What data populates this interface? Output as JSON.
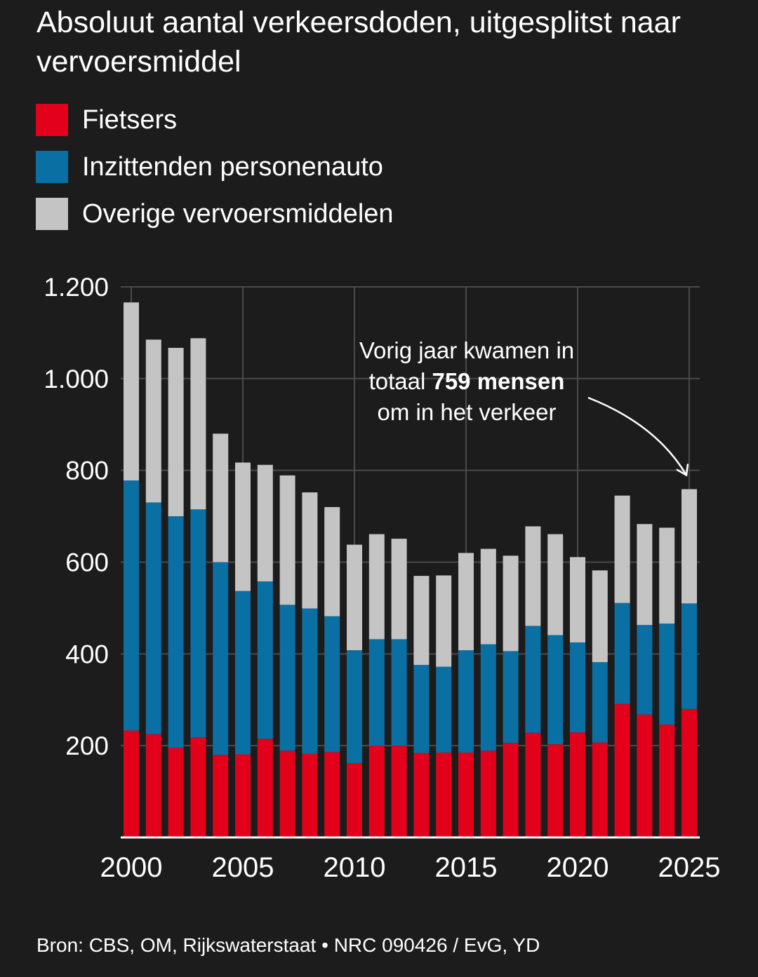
{
  "header": {
    "title": "Absoluut aantal verkeersdoden, uitgesplitst naar vervoersmiddel"
  },
  "colors": {
    "background": "#1c1c1c",
    "fietsers": "#e3001b",
    "auto": "#0a6fa3",
    "overige": "#c4c4c4",
    "grid": "#4a4a4a",
    "axis": "#ffffff"
  },
  "legend": {
    "items": [
      {
        "label": "Fietsers",
        "color": "#e3001b"
      },
      {
        "label": "Inzittenden personenauto",
        "color": "#0a6fa3"
      },
      {
        "label": "Overige vervoersmiddelen",
        "color": "#c4c4c4"
      }
    ]
  },
  "annotation": {
    "line1": "Vorig jaar kwamen in",
    "line2_pre": "totaal ",
    "line2_bold": "759 mensen",
    "line3": "om  in het verkeer"
  },
  "source": {
    "text": "Bron: CBS, OM, Rijkswaterstaat  •  NRC 090426 / EvG, YD"
  },
  "chart_data": {
    "type": "bar",
    "stacked": true,
    "x": [
      2000,
      2001,
      2002,
      2003,
      2004,
      2005,
      2006,
      2007,
      2008,
      2009,
      2010,
      2011,
      2012,
      2013,
      2014,
      2015,
      2016,
      2017,
      2018,
      2019,
      2020,
      2021,
      2022,
      2023,
      2024,
      2025
    ],
    "series": [
      {
        "name": "Fietsers",
        "values": [
          233,
          225,
          195,
          218,
          180,
          181,
          215,
          189,
          182,
          186,
          162,
          200,
          200,
          184,
          185,
          185,
          189,
          206,
          228,
          203,
          229,
          207,
          291,
          268,
          246,
          280
        ]
      },
      {
        "name": "Inzittenden personenauto",
        "values": [
          545,
          505,
          505,
          497,
          420,
          356,
          343,
          318,
          317,
          296,
          246,
          232,
          232,
          192,
          187,
          223,
          232,
          200,
          233,
          238,
          196,
          175,
          220,
          195,
          220,
          230
        ]
      },
      {
        "name": "Overige vervoersmiddelen",
        "values": [
          388,
          355,
          367,
          373,
          280,
          280,
          254,
          282,
          253,
          238,
          230,
          229,
          219,
          194,
          199,
          212,
          208,
          208,
          217,
          220,
          186,
          200,
          234,
          220,
          209,
          249
        ]
      }
    ],
    "ylim": [
      0,
      1200
    ],
    "yticks": [
      200,
      400,
      600,
      800,
      1000,
      1200
    ],
    "ytick_labels": [
      "200",
      "400",
      "600",
      "800",
      "1.000",
      "1.200"
    ],
    "xticks": [
      2000,
      2005,
      2010,
      2015,
      2020,
      2025
    ],
    "xtick_labels": [
      "2000",
      "2005",
      "2010",
      "2015",
      "2020",
      "2025"
    ],
    "grid": true
  }
}
